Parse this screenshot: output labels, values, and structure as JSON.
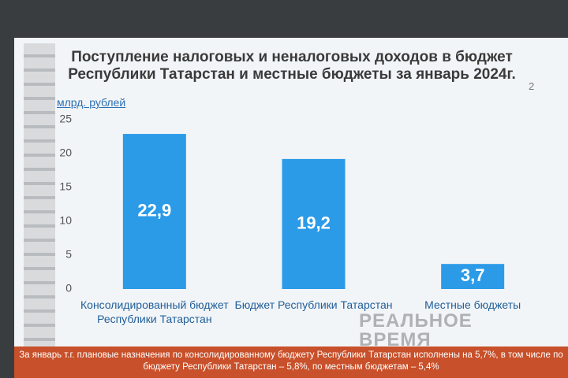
{
  "chart_data": {
    "type": "bar",
    "title": "Поступление налоговых и неналоговых доходов в бюджет Республики Татарстан и местные бюджеты за январь 2024г.",
    "y_label": "млрд. рублей",
    "page_number": "2",
    "categories": [
      "Консолидированный бюджет Республики Татарстан",
      "Бюджет Республики Татарстан",
      "Местные бюджеты"
    ],
    "values": [
      22.9,
      19.2,
      3.7
    ],
    "value_labels": [
      "22,9",
      "19,2",
      "3,7"
    ],
    "color": "#2b9be8",
    "ylim": [
      0,
      25
    ],
    "yticks": [
      0,
      5,
      10,
      15,
      20,
      25
    ],
    "grid": false,
    "footnote": "За январь т.г. плановые назначения по консолидированному бюджету Республики Татарстан исполнены на 5,7%, в том числе по бюджету Республики Татарстан – 5,8%, по местным бюджетам – 5,4%",
    "watermark": "РЕАЛЬНОЕ ВРЕМЯ"
  }
}
